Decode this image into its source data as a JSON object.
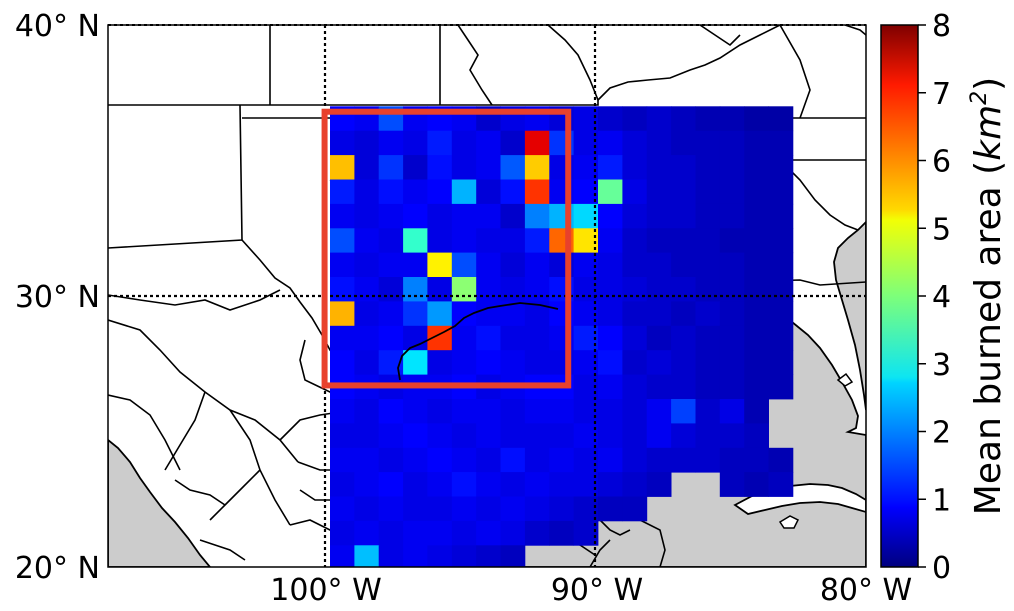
{
  "chart_data": {
    "type": "heatmap",
    "title": "",
    "projection": "lat-lon",
    "extent": {
      "lon": [
        -108,
        -80
      ],
      "lat": [
        20,
        40
      ]
    },
    "x_ticks": [
      {
        "value": -100,
        "label": "100° W"
      },
      {
        "value": -90,
        "label": "90° W"
      },
      {
        "value": -80,
        "label": "80° W"
      }
    ],
    "y_ticks": [
      {
        "value": 40,
        "label": "40° N"
      },
      {
        "value": 30,
        "label": "30° N"
      },
      {
        "value": 20,
        "label": "20° N"
      }
    ],
    "gridlines": {
      "style": "dotted",
      "lon": [
        -100,
        -90
      ],
      "lat": [
        30
      ]
    },
    "region_box": {
      "lon": [
        -100,
        -91
      ],
      "lat": [
        26.7,
        36.8
      ],
      "color": "#e8412c"
    },
    "grid": {
      "lon_start": -99.8,
      "lat_start": 37.0,
      "cell_deg": 0.9,
      "rows": [
        [
          1.0,
          0.9,
          1.6,
          0.9,
          1.0,
          0.9,
          0.6,
          0.8,
          0.9,
          0.7,
          0.8,
          0.6,
          0.5,
          0.6,
          0.5,
          0.4,
          0.4,
          0.3,
          0.3,
          null
        ],
        [
          0.8,
          0.7,
          0.9,
          0.8,
          1.2,
          0.8,
          0.9,
          0.6,
          7.2,
          1.4,
          0.8,
          0.9,
          0.7,
          0.6,
          0.5,
          0.5,
          0.5,
          0.4,
          0.4,
          null
        ],
        [
          5.5,
          0.7,
          1.4,
          0.6,
          1.1,
          0.8,
          0.9,
          1.7,
          5.4,
          0.8,
          0.9,
          1.2,
          0.7,
          0.6,
          0.6,
          0.5,
          0.5,
          0.4,
          0.4,
          null
        ],
        [
          1.2,
          0.8,
          1.1,
          0.9,
          1.0,
          2.4,
          0.7,
          1.1,
          6.6,
          0.9,
          1.0,
          3.8,
          0.8,
          0.6,
          0.6,
          0.5,
          0.5,
          0.4,
          0.4,
          null
        ],
        [
          0.9,
          0.8,
          0.9,
          1.0,
          0.8,
          0.9,
          0.9,
          0.6,
          2.0,
          2.4,
          2.7,
          1.0,
          0.7,
          0.6,
          0.6,
          0.5,
          0.5,
          0.4,
          0.4,
          null
        ],
        [
          1.6,
          0.9,
          0.8,
          3.4,
          0.8,
          0.9,
          0.8,
          0.8,
          1.2,
          6.2,
          5.2,
          0.9,
          0.6,
          0.5,
          0.5,
          0.5,
          0.4,
          0.4,
          0.4,
          null
        ],
        [
          0.9,
          0.8,
          0.9,
          0.9,
          5.1,
          1.6,
          0.9,
          0.7,
          0.9,
          0.7,
          0.9,
          0.8,
          0.6,
          0.6,
          0.5,
          0.5,
          0.5,
          0.4,
          0.4,
          null
        ],
        [
          1.1,
          0.9,
          0.7,
          2.0,
          0.8,
          4.1,
          0.9,
          0.8,
          0.9,
          1.1,
          0.8,
          0.8,
          0.7,
          0.6,
          0.6,
          0.5,
          0.5,
          0.4,
          0.4,
          null
        ],
        [
          5.6,
          0.8,
          0.9,
          1.4,
          2.2,
          1.0,
          0.9,
          0.9,
          0.8,
          1.0,
          0.9,
          0.8,
          0.6,
          0.6,
          0.5,
          0.6,
          0.5,
          0.4,
          0.4,
          null
        ],
        [
          0.9,
          0.9,
          1.0,
          0.8,
          6.6,
          0.9,
          1.1,
          0.8,
          0.8,
          0.9,
          1.2,
          1.0,
          0.7,
          0.5,
          0.6,
          0.5,
          0.5,
          0.4,
          0.4,
          null
        ],
        [
          1.0,
          0.8,
          1.2,
          2.8,
          0.8,
          0.9,
          1.0,
          0.9,
          0.8,
          0.8,
          0.9,
          1.1,
          0.6,
          0.7,
          0.6,
          0.5,
          0.5,
          0.4,
          0.4,
          null
        ],
        [
          1.0,
          0.9,
          0.8,
          0.9,
          0.9,
          1.0,
          0.8,
          0.9,
          1.0,
          1.0,
          0.8,
          0.9,
          0.7,
          0.6,
          0.6,
          0.5,
          0.5,
          0.4,
          0.4,
          null
        ],
        [
          0.9,
          0.8,
          1.0,
          0.9,
          0.8,
          0.9,
          0.9,
          0.8,
          0.9,
          0.9,
          0.8,
          0.8,
          0.7,
          0.9,
          1.5,
          0.6,
          0.8,
          0.4,
          null,
          null
        ],
        [
          0.8,
          0.8,
          0.9,
          1.0,
          0.9,
          0.8,
          0.9,
          0.8,
          0.8,
          0.8,
          0.9,
          0.8,
          0.7,
          0.9,
          0.7,
          0.6,
          0.6,
          0.5,
          null,
          null
        ],
        [
          0.9,
          0.9,
          0.8,
          0.9,
          1.0,
          0.9,
          0.8,
          1.1,
          0.8,
          0.9,
          0.8,
          0.9,
          0.7,
          0.6,
          0.6,
          0.6,
          0.5,
          0.5,
          0.4,
          null
        ],
        [
          0.8,
          0.9,
          1.0,
          0.8,
          0.9,
          1.1,
          0.9,
          0.8,
          0.9,
          0.8,
          0.8,
          0.7,
          0.6,
          0.5,
          null,
          null,
          0.5,
          0.4,
          0.5,
          null
        ],
        [
          0.9,
          0.8,
          0.9,
          0.8,
          0.8,
          0.9,
          0.8,
          0.9,
          0.8,
          0.7,
          0.6,
          0.5,
          0.5,
          null,
          null,
          null,
          null,
          null,
          null,
          null
        ],
        [
          0.8,
          0.9,
          0.8,
          0.9,
          0.9,
          0.8,
          0.9,
          0.8,
          0.6,
          0.5,
          0.6,
          null,
          null,
          null,
          null,
          null,
          null,
          null,
          null,
          null
        ],
        [
          0.9,
          2.5,
          0.8,
          0.9,
          0.8,
          0.7,
          0.6,
          0.5,
          null,
          null,
          null,
          null,
          null,
          null,
          null,
          null,
          null,
          null,
          null,
          null
        ],
        [
          0.8,
          0.8,
          0.9,
          0.7,
          0.6,
          0.5,
          null,
          null,
          null,
          null,
          null,
          null,
          null,
          null,
          null,
          null,
          null,
          null,
          null,
          null
        ],
        [
          null,
          null,
          0.6,
          0.5,
          null,
          null,
          null,
          null,
          null,
          null,
          null,
          null,
          null,
          null,
          null,
          null,
          null,
          null,
          null,
          null
        ]
      ]
    },
    "colorbar": {
      "label": "Mean burned area (km²)",
      "label_main": "Mean burned area (",
      "label_unit": "km",
      "label_sup": "2",
      "label_close": ")",
      "range": [
        0,
        8
      ],
      "ticks": [
        "0",
        "1",
        "2",
        "3",
        "4",
        "5",
        "6",
        "7",
        "8"
      ],
      "colormap": "jet"
    },
    "colors": {
      "ocean": "#cccccc",
      "land": "#ffffff",
      "borders": "#000000"
    }
  }
}
